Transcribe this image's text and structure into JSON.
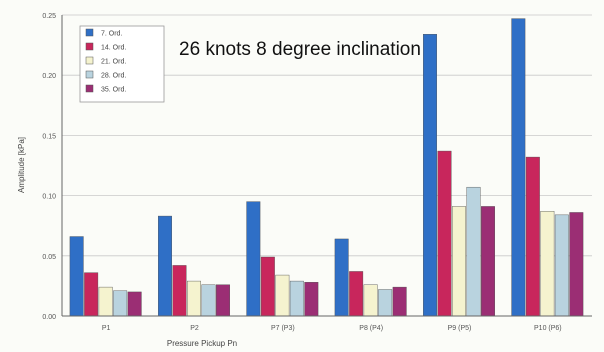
{
  "chart_data": {
    "type": "bar",
    "title": "26 knots 8 degree inclination",
    "xlabel": "Pressure Pickup Pn",
    "ylabel": "Amplitude [kPa]",
    "ylim": [
      0,
      0.25
    ],
    "yticks": [
      "0.00",
      "0.05",
      "0.10",
      "0.15",
      "0.20",
      "0.25"
    ],
    "grid": true,
    "legend_position": "top-left",
    "categories": [
      "P1",
      "P2",
      "P7 (P3)",
      "P8 (P4)",
      "P9 (P5)",
      "P10 (P6)"
    ],
    "series": [
      {
        "name": "7. Ord.",
        "color": "#2f6fc6",
        "values": [
          0.066,
          0.083,
          0.095,
          0.064,
          0.234,
          0.247
        ]
      },
      {
        "name": "14. Ord.",
        "color": "#c8265c",
        "values": [
          0.036,
          0.042,
          0.049,
          0.037,
          0.137,
          0.132
        ]
      },
      {
        "name": "21. Ord.",
        "color": "#f5f3cf",
        "values": [
          0.024,
          0.029,
          0.034,
          0.026,
          0.091,
          0.087
        ]
      },
      {
        "name": "28. Ord.",
        "color": "#b9d3df",
        "values": [
          0.021,
          0.026,
          0.029,
          0.022,
          0.107,
          0.084
        ]
      },
      {
        "name": "35. Ord.",
        "color": "#9b2e74",
        "values": [
          0.02,
          0.026,
          0.028,
          0.024,
          0.091,
          0.086
        ]
      }
    ]
  }
}
